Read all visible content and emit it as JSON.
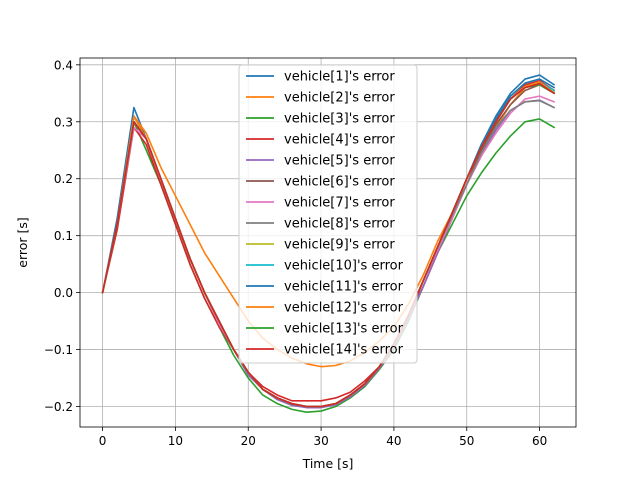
{
  "chart_data": {
    "type": "line",
    "title": "",
    "xlabel": "Time [s]",
    "ylabel": "error [s]",
    "xlim": [
      -3.1,
      65.0
    ],
    "ylim": [
      -0.236,
      0.412
    ],
    "xticks": [
      0,
      10,
      20,
      30,
      40,
      50,
      60
    ],
    "yticks": [
      -0.2,
      -0.1,
      0.0,
      0.1,
      0.2,
      0.3,
      0.4
    ],
    "xtick_labels": [
      "0",
      "10",
      "20",
      "30",
      "40",
      "50",
      "60"
    ],
    "ytick_labels": [
      "−0.2",
      "−0.1",
      "0.0",
      "0.1",
      "0.2",
      "0.3",
      "0.4"
    ],
    "grid": true,
    "legend_position": "upper center",
    "x": [
      0,
      2,
      4.3,
      6,
      8,
      10,
      12,
      14,
      16,
      18,
      20,
      22,
      24,
      26,
      28,
      30,
      32,
      34,
      36,
      38,
      40,
      42,
      44,
      46,
      48,
      50,
      52,
      54,
      56,
      58,
      60,
      62
    ],
    "series": [
      {
        "name": "vehicle[1]'s error",
        "color": "#1f77b4",
        "values": [
          0.0,
          0.13,
          0.325,
          0.27,
          0.2,
          0.13,
          0.06,
          0.0,
          -0.05,
          -0.1,
          -0.14,
          -0.17,
          -0.185,
          -0.195,
          -0.2,
          -0.2,
          -0.195,
          -0.18,
          -0.16,
          -0.13,
          -0.09,
          -0.04,
          0.02,
          0.08,
          0.14,
          0.2,
          0.26,
          0.31,
          0.35,
          0.375,
          0.382,
          0.365
        ]
      },
      {
        "name": "vehicle[2]'s error",
        "color": "#ff7f0e",
        "values": [
          0.0,
          0.12,
          0.31,
          0.28,
          0.22,
          0.17,
          0.12,
          0.07,
          0.03,
          -0.01,
          -0.05,
          -0.08,
          -0.1,
          -0.115,
          -0.125,
          -0.13,
          -0.128,
          -0.12,
          -0.105,
          -0.085,
          -0.06,
          -0.02,
          0.03,
          0.09,
          0.14,
          0.19,
          0.24,
          0.29,
          0.33,
          0.36,
          0.372,
          0.355
        ]
      },
      {
        "name": "vehicle[3]'s error",
        "color": "#2ca02c",
        "values": [
          0.0,
          0.12,
          0.3,
          0.25,
          0.19,
          0.12,
          0.05,
          -0.01,
          -0.06,
          -0.11,
          -0.15,
          -0.18,
          -0.195,
          -0.205,
          -0.21,
          -0.208,
          -0.2,
          -0.185,
          -0.165,
          -0.135,
          -0.1,
          -0.05,
          0.01,
          0.07,
          0.12,
          0.17,
          0.21,
          0.245,
          0.275,
          0.3,
          0.305,
          0.29
        ]
      },
      {
        "name": "vehicle[4]'s error",
        "color": "#d62728",
        "values": [
          0.0,
          0.11,
          0.29,
          0.26,
          0.19,
          0.12,
          0.05,
          -0.01,
          -0.06,
          -0.1,
          -0.14,
          -0.165,
          -0.18,
          -0.19,
          -0.19,
          -0.19,
          -0.185,
          -0.175,
          -0.155,
          -0.13,
          -0.09,
          -0.04,
          0.01,
          0.07,
          0.13,
          0.19,
          0.25,
          0.3,
          0.34,
          0.365,
          0.372,
          0.355
        ]
      },
      {
        "name": "vehicle[5]'s error",
        "color": "#9467bd",
        "values": [
          0.0,
          0.12,
          0.3,
          0.27,
          0.2,
          0.13,
          0.06,
          -0.0,
          -0.055,
          -0.1,
          -0.145,
          -0.17,
          -0.188,
          -0.198,
          -0.202,
          -0.202,
          -0.197,
          -0.183,
          -0.163,
          -0.133,
          -0.095,
          -0.045,
          0.01,
          0.07,
          0.13,
          0.19,
          0.24,
          0.285,
          0.32,
          0.335,
          0.338,
          0.325
        ]
      },
      {
        "name": "vehicle[6]'s error",
        "color": "#8c564b",
        "values": [
          0.0,
          0.12,
          0.3,
          0.27,
          0.2,
          0.13,
          0.06,
          0.0,
          -0.05,
          -0.1,
          -0.14,
          -0.17,
          -0.185,
          -0.196,
          -0.2,
          -0.2,
          -0.195,
          -0.18,
          -0.16,
          -0.13,
          -0.09,
          -0.04,
          0.02,
          0.08,
          0.14,
          0.2,
          0.25,
          0.295,
          0.33,
          0.355,
          0.365,
          0.35
        ]
      },
      {
        "name": "vehicle[7]'s error",
        "color": "#e377c2",
        "values": [
          0.0,
          0.12,
          0.29,
          0.27,
          0.2,
          0.13,
          0.06,
          0.0,
          -0.055,
          -0.1,
          -0.14,
          -0.17,
          -0.185,
          -0.195,
          -0.2,
          -0.2,
          -0.195,
          -0.18,
          -0.16,
          -0.13,
          -0.09,
          -0.04,
          0.02,
          0.075,
          0.13,
          0.19,
          0.24,
          0.28,
          0.315,
          0.34,
          0.345,
          0.335
        ]
      },
      {
        "name": "vehicle[8]'s error",
        "color": "#7f7f7f",
        "values": [
          0.0,
          0.12,
          0.3,
          0.27,
          0.2,
          0.13,
          0.06,
          0.0,
          -0.05,
          -0.1,
          -0.14,
          -0.17,
          -0.185,
          -0.195,
          -0.2,
          -0.2,
          -0.195,
          -0.18,
          -0.16,
          -0.13,
          -0.09,
          -0.04,
          0.02,
          0.08,
          0.135,
          0.19,
          0.245,
          0.29,
          0.32,
          0.335,
          0.337,
          0.325
        ]
      },
      {
        "name": "vehicle[9]'s error",
        "color": "#bcbd22",
        "values": [
          0.0,
          0.12,
          0.3,
          0.27,
          0.2,
          0.13,
          0.06,
          0.0,
          -0.05,
          -0.1,
          -0.14,
          -0.17,
          -0.185,
          -0.195,
          -0.2,
          -0.2,
          -0.195,
          -0.18,
          -0.16,
          -0.13,
          -0.09,
          -0.04,
          0.02,
          0.08,
          0.14,
          0.2,
          0.255,
          0.305,
          0.34,
          0.362,
          0.368,
          0.352
        ]
      },
      {
        "name": "vehicle[10]'s error",
        "color": "#17becf",
        "values": [
          0.0,
          0.12,
          0.3,
          0.27,
          0.2,
          0.13,
          0.06,
          0.0,
          -0.05,
          -0.1,
          -0.14,
          -0.17,
          -0.185,
          -0.195,
          -0.2,
          -0.2,
          -0.195,
          -0.18,
          -0.16,
          -0.13,
          -0.09,
          -0.04,
          0.02,
          0.08,
          0.14,
          0.2,
          0.255,
          0.305,
          0.34,
          0.362,
          0.37,
          0.355
        ]
      },
      {
        "name": "vehicle[11]'s error",
        "color": "#1f77b4",
        "values": [
          0.0,
          0.12,
          0.31,
          0.27,
          0.2,
          0.13,
          0.06,
          0.0,
          -0.05,
          -0.1,
          -0.14,
          -0.17,
          -0.185,
          -0.195,
          -0.2,
          -0.2,
          -0.195,
          -0.18,
          -0.16,
          -0.13,
          -0.09,
          -0.04,
          0.02,
          0.08,
          0.14,
          0.2,
          0.26,
          0.305,
          0.345,
          0.368,
          0.375,
          0.36
        ]
      },
      {
        "name": "vehicle[12]'s error",
        "color": "#ff7f0e",
        "values": [
          0.0,
          0.12,
          0.31,
          0.27,
          0.2,
          0.13,
          0.06,
          0.0,
          -0.05,
          -0.1,
          -0.14,
          -0.17,
          -0.185,
          -0.195,
          -0.2,
          -0.2,
          -0.195,
          -0.18,
          -0.16,
          -0.13,
          -0.09,
          -0.04,
          0.02,
          0.08,
          0.14,
          0.2,
          0.255,
          0.3,
          0.34,
          0.362,
          0.37,
          0.35
        ]
      },
      {
        "name": "vehicle[13]'s error",
        "color": "#2ca02c",
        "values": [
          0.0,
          0.12,
          0.3,
          0.27,
          0.2,
          0.13,
          0.06,
          0.0,
          -0.05,
          -0.1,
          -0.14,
          -0.17,
          -0.185,
          -0.195,
          -0.2,
          -0.2,
          -0.195,
          -0.18,
          -0.16,
          -0.13,
          -0.09,
          -0.04,
          0.02,
          0.08,
          0.14,
          0.2,
          0.255,
          0.3,
          0.34,
          0.36,
          0.365,
          0.35
        ]
      },
      {
        "name": "vehicle[14]'s error",
        "color": "#d62728",
        "values": [
          0.0,
          0.12,
          0.3,
          0.27,
          0.2,
          0.13,
          0.06,
          0.0,
          -0.05,
          -0.1,
          -0.14,
          -0.17,
          -0.185,
          -0.195,
          -0.2,
          -0.2,
          -0.195,
          -0.18,
          -0.16,
          -0.13,
          -0.09,
          -0.04,
          0.02,
          0.08,
          0.14,
          0.2,
          0.255,
          0.3,
          0.34,
          0.36,
          0.367,
          0.35
        ]
      }
    ]
  }
}
